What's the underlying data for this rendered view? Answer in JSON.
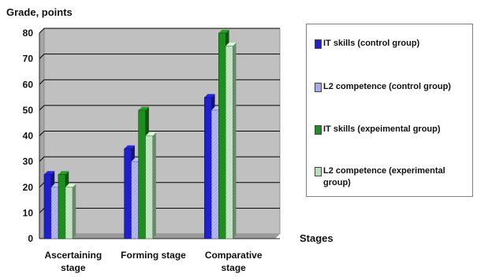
{
  "chart_data": {
    "type": "bar",
    "ylabel": "Grade, points",
    "xlabel": "Stages",
    "ylim": [
      0,
      80
    ],
    "yticks": [
      0,
      10,
      20,
      30,
      40,
      50,
      60,
      70,
      80
    ],
    "grid": true,
    "legend_position": "right",
    "categories": [
      [
        "Ascertaining",
        "stage"
      ],
      [
        "Forming stage"
      ],
      [
        "Comparative",
        "stage"
      ]
    ],
    "series": [
      {
        "name": "IT skills (control group)",
        "values": [
          25,
          35,
          55
        ],
        "color": "#1f1fcc"
      },
      {
        "name": "L2 competence (control group)",
        "values": [
          20,
          30,
          50
        ],
        "color": "#a8a8ee"
      },
      {
        "name": "IT skills (expeimental group)",
        "values": [
          25,
          50,
          80
        ],
        "color": "#1e8e1e"
      },
      {
        "name": "L2 competence (experimental group)",
        "values": [
          20,
          40,
          75
        ],
        "color": "#b8e0b8"
      }
    ]
  }
}
